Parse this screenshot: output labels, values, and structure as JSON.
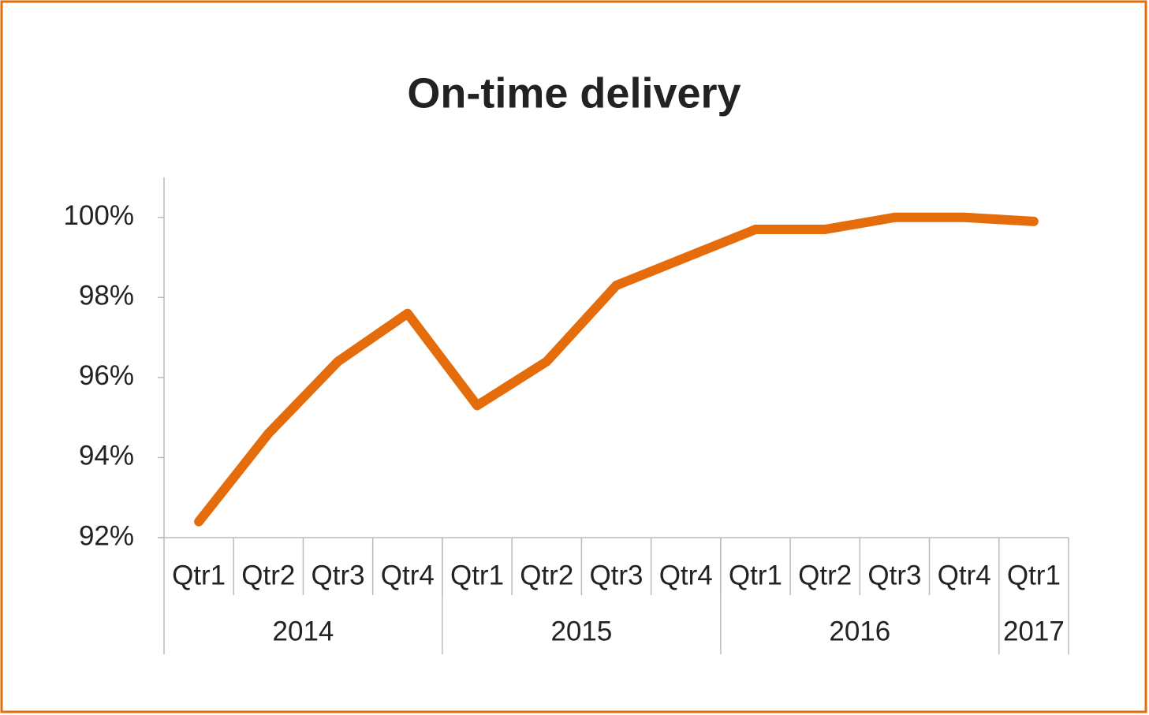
{
  "chart_data": {
    "type": "line",
    "title": "On-time delivery",
    "categories": [
      "Qtr1",
      "Qtr2",
      "Qtr3",
      "Qtr4",
      "Qtr1",
      "Qtr2",
      "Qtr3",
      "Qtr4",
      "Qtr1",
      "Qtr2",
      "Qtr3",
      "Qtr4",
      "Qtr1"
    ],
    "category_groups": [
      {
        "label": "2014",
        "size": 4
      },
      {
        "label": "2015",
        "size": 4
      },
      {
        "label": "2016",
        "size": 4
      },
      {
        "label": "2017",
        "size": 1
      }
    ],
    "values": [
      92.4,
      94.6,
      96.4,
      97.6,
      95.3,
      96.4,
      98.3,
      99.0,
      99.7,
      99.7,
      100.0,
      100.0,
      99.9
    ],
    "color": "#e46c0a",
    "ylim": [
      92,
      101
    ],
    "yticks": [
      {
        "value": 92,
        "label": "92%"
      },
      {
        "value": 94,
        "label": "94%"
      },
      {
        "value": 96,
        "label": "96%"
      },
      {
        "value": 98,
        "label": "98%"
      },
      {
        "value": 100,
        "label": "100%"
      }
    ]
  }
}
